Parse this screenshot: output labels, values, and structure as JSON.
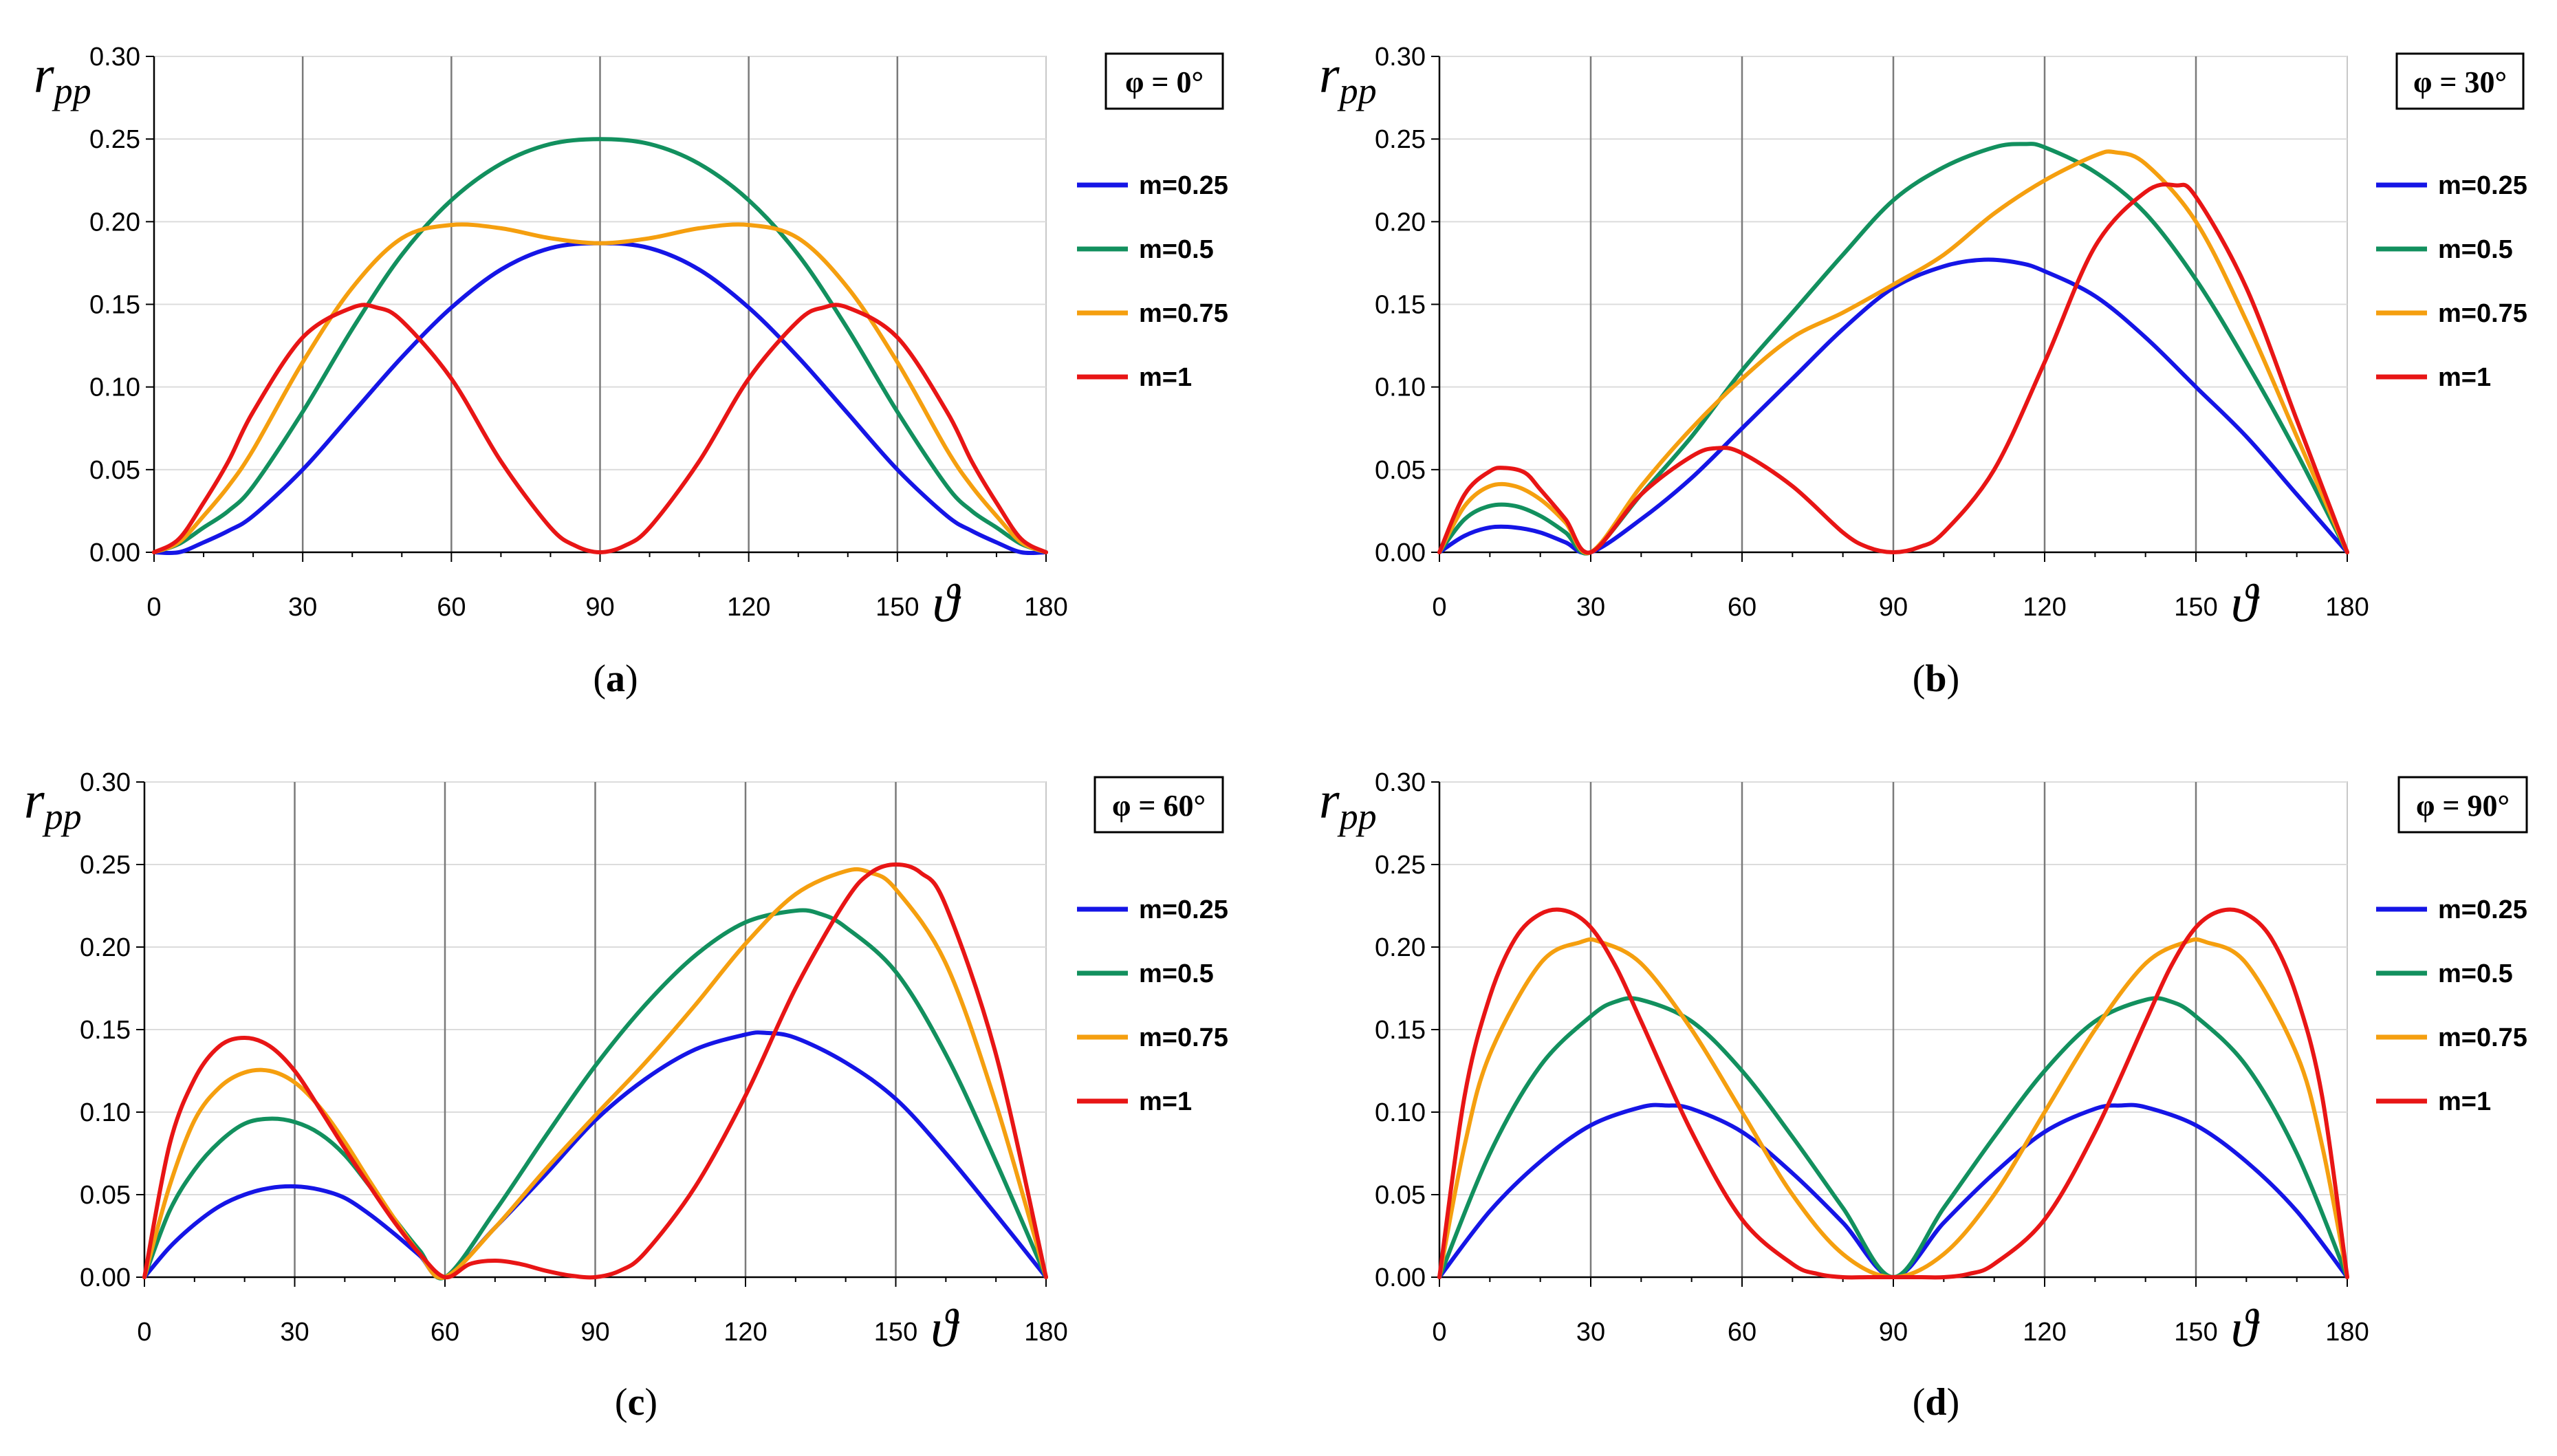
{
  "chart_data": [
    {
      "type": "line",
      "panel_label": "a",
      "phi_label": "φ = 0°",
      "ylabel": "r",
      "ylabel_sub": "pp",
      "xlabel": "ϑ",
      "xlim": [
        0,
        180
      ],
      "ylim": [
        0,
        0.3
      ],
      "xticks": [
        "0",
        "30",
        "60",
        "90",
        "120",
        "150",
        "180"
      ],
      "yticks": [
        "0.00",
        "0.05",
        "0.10",
        "0.15",
        "0.20",
        "0.25",
        "0.30"
      ],
      "grid": "vertical",
      "legend_position": "right",
      "series": [
        {
          "name": "m=0.25",
          "color": "#1515e6",
          "x": [
            0,
            5,
            10,
            15,
            20,
            30,
            40,
            50,
            60,
            70,
            80,
            90,
            100,
            110,
            120,
            130,
            140,
            150,
            160,
            165,
            170,
            175,
            180
          ],
          "values": [
            0.0,
            0.0,
            0.006,
            0.013,
            0.022,
            0.05,
            0.084,
            0.118,
            0.148,
            0.171,
            0.184,
            0.187,
            0.184,
            0.171,
            0.148,
            0.118,
            0.084,
            0.05,
            0.022,
            0.013,
            0.006,
            0.0,
            0.0
          ]
        },
        {
          "name": "m=0.5",
          "color": "#12905e",
          "x": [
            0,
            5,
            10,
            15,
            20,
            30,
            40,
            50,
            60,
            70,
            80,
            90,
            100,
            110,
            120,
            130,
            140,
            150,
            160,
            165,
            170,
            175,
            180
          ],
          "values": [
            0.0,
            0.005,
            0.015,
            0.025,
            0.04,
            0.085,
            0.135,
            0.18,
            0.213,
            0.235,
            0.247,
            0.25,
            0.247,
            0.235,
            0.213,
            0.18,
            0.135,
            0.085,
            0.04,
            0.025,
            0.015,
            0.005,
            0.0
          ]
        },
        {
          "name": "m=0.75",
          "color": "#f59f0f",
          "x": [
            0,
            5,
            10,
            15,
            20,
            30,
            40,
            50,
            60,
            70,
            80,
            90,
            100,
            110,
            120,
            130,
            140,
            150,
            160,
            165,
            170,
            175,
            180
          ],
          "values": [
            0.0,
            0.006,
            0.022,
            0.04,
            0.062,
            0.115,
            0.16,
            0.19,
            0.198,
            0.196,
            0.19,
            0.187,
            0.19,
            0.196,
            0.198,
            0.19,
            0.16,
            0.115,
            0.062,
            0.04,
            0.022,
            0.006,
            0.0
          ]
        },
        {
          "name": "m=1",
          "color": "#e81515",
          "x": [
            0,
            5,
            10,
            15,
            20,
            30,
            40,
            45,
            50,
            60,
            70,
            80,
            85,
            90,
            95,
            100,
            110,
            120,
            130,
            135,
            140,
            150,
            160,
            165,
            170,
            175,
            180
          ],
          "values": [
            0.0,
            0.008,
            0.03,
            0.055,
            0.085,
            0.13,
            0.148,
            0.148,
            0.14,
            0.105,
            0.055,
            0.015,
            0.004,
            0.0,
            0.004,
            0.015,
            0.055,
            0.105,
            0.14,
            0.148,
            0.148,
            0.13,
            0.085,
            0.055,
            0.03,
            0.008,
            0.0
          ]
        }
      ]
    },
    {
      "type": "line",
      "panel_label": "b",
      "phi_label": "φ = 30°",
      "ylabel": "r",
      "ylabel_sub": "pp",
      "xlabel": "ϑ",
      "xlim": [
        0,
        180
      ],
      "ylim": [
        0,
        0.3
      ],
      "xticks": [
        "0",
        "30",
        "60",
        "90",
        "120",
        "150",
        "180"
      ],
      "yticks": [
        "0.00",
        "0.05",
        "0.10",
        "0.15",
        "0.20",
        "0.25",
        "0.30"
      ],
      "grid": "vertical",
      "legend_position": "right",
      "series": [
        {
          "name": "m=0.25",
          "color": "#1515e6",
          "x": [
            0,
            5,
            10,
            15,
            20,
            25,
            30,
            40,
            50,
            60,
            70,
            80,
            90,
            100,
            108,
            115,
            120,
            130,
            140,
            150,
            160,
            170,
            180
          ],
          "values": [
            0.0,
            0.01,
            0.015,
            0.015,
            0.012,
            0.006,
            0.0,
            0.02,
            0.045,
            0.075,
            0.105,
            0.135,
            0.16,
            0.173,
            0.177,
            0.175,
            0.17,
            0.155,
            0.13,
            0.1,
            0.07,
            0.035,
            0.0
          ]
        },
        {
          "name": "m=0.5",
          "color": "#12905e",
          "x": [
            0,
            5,
            10,
            15,
            20,
            25,
            30,
            40,
            50,
            60,
            70,
            80,
            90,
            100,
            110,
            116,
            120,
            130,
            140,
            150,
            160,
            170,
            180
          ],
          "values": [
            0.0,
            0.02,
            0.028,
            0.028,
            0.022,
            0.012,
            0.0,
            0.035,
            0.07,
            0.11,
            0.145,
            0.18,
            0.213,
            0.233,
            0.245,
            0.247,
            0.245,
            0.23,
            0.205,
            0.165,
            0.115,
            0.06,
            0.0
          ]
        },
        {
          "name": "m=0.75",
          "color": "#f59f0f",
          "x": [
            0,
            5,
            10,
            15,
            20,
            25,
            30,
            40,
            50,
            60,
            70,
            80,
            90,
            100,
            110,
            120,
            130,
            134,
            140,
            150,
            160,
            170,
            175,
            180
          ],
          "values": [
            0.0,
            0.028,
            0.04,
            0.04,
            0.032,
            0.018,
            0.0,
            0.04,
            0.075,
            0.105,
            0.13,
            0.145,
            0.162,
            0.18,
            0.205,
            0.225,
            0.24,
            0.242,
            0.235,
            0.2,
            0.14,
            0.07,
            0.035,
            0.0
          ]
        },
        {
          "name": "m=1",
          "color": "#e81515",
          "x": [
            0,
            5,
            10,
            13,
            17,
            20,
            25,
            30,
            40,
            50,
            55,
            60,
            70,
            80,
            85,
            90,
            95,
            100,
            110,
            120,
            130,
            140,
            146,
            150,
            160,
            170,
            175,
            180
          ],
          "values": [
            0.0,
            0.035,
            0.049,
            0.051,
            0.048,
            0.038,
            0.02,
            0.0,
            0.035,
            0.058,
            0.063,
            0.06,
            0.04,
            0.012,
            0.003,
            0.0,
            0.003,
            0.012,
            0.05,
            0.115,
            0.185,
            0.218,
            0.222,
            0.215,
            0.16,
            0.08,
            0.04,
            0.0
          ]
        }
      ]
    },
    {
      "type": "line",
      "panel_label": "c",
      "phi_label": "φ = 60°",
      "ylabel": "r",
      "ylabel_sub": "pp",
      "xlabel": "ϑ",
      "xlim": [
        0,
        180
      ],
      "ylim": [
        0,
        0.3
      ],
      "xticks": [
        "0",
        "30",
        "60",
        "90",
        "120",
        "150",
        "180"
      ],
      "yticks": [
        "0.00",
        "0.05",
        "0.10",
        "0.15",
        "0.20",
        "0.25",
        "0.30"
      ],
      "grid": "vertical",
      "legend_position": "right",
      "series": [
        {
          "name": "m=0.25",
          "color": "#1515e6",
          "x": [
            0,
            5,
            10,
            15,
            20,
            25,
            30,
            35,
            40,
            45,
            50,
            55,
            60,
            70,
            80,
            90,
            100,
            110,
            120,
            124,
            130,
            140,
            150,
            160,
            170,
            180
          ],
          "values": [
            0.0,
            0.018,
            0.032,
            0.043,
            0.05,
            0.054,
            0.055,
            0.053,
            0.048,
            0.038,
            0.026,
            0.013,
            0.0,
            0.03,
            0.062,
            0.095,
            0.12,
            0.138,
            0.147,
            0.148,
            0.145,
            0.13,
            0.108,
            0.075,
            0.038,
            0.0
          ]
        },
        {
          "name": "m=0.5",
          "color": "#12905e",
          "x": [
            0,
            5,
            10,
            15,
            20,
            25,
            30,
            35,
            40,
            45,
            50,
            55,
            60,
            70,
            80,
            90,
            100,
            110,
            120,
            130,
            135,
            140,
            150,
            160,
            170,
            180
          ],
          "values": [
            0.0,
            0.04,
            0.065,
            0.082,
            0.093,
            0.096,
            0.094,
            0.087,
            0.074,
            0.055,
            0.035,
            0.016,
            0.0,
            0.04,
            0.085,
            0.128,
            0.165,
            0.195,
            0.215,
            0.222,
            0.22,
            0.212,
            0.185,
            0.135,
            0.07,
            0.0
          ]
        },
        {
          "name": "m=0.75",
          "color": "#f59f0f",
          "x": [
            0,
            5,
            10,
            15,
            20,
            25,
            30,
            35,
            40,
            45,
            50,
            55,
            60,
            70,
            80,
            90,
            100,
            110,
            120,
            130,
            140,
            145,
            150,
            160,
            170,
            180
          ],
          "values": [
            0.0,
            0.055,
            0.095,
            0.115,
            0.124,
            0.125,
            0.118,
            0.103,
            0.082,
            0.058,
            0.035,
            0.014,
            0.0,
            0.03,
            0.065,
            0.098,
            0.13,
            0.165,
            0.202,
            0.232,
            0.246,
            0.245,
            0.235,
            0.19,
            0.105,
            0.0
          ]
        },
        {
          "name": "m=1",
          "color": "#e81515",
          "x": [
            0,
            5,
            10,
            15,
            20,
            25,
            30,
            35,
            40,
            45,
            50,
            55,
            60,
            65,
            70,
            75,
            80,
            85,
            90,
            95,
            100,
            110,
            120,
            130,
            140,
            145,
            150,
            155,
            160,
            170,
            180
          ],
          "values": [
            0.0,
            0.08,
            0.12,
            0.14,
            0.145,
            0.14,
            0.125,
            0.102,
            0.078,
            0.055,
            0.033,
            0.014,
            0.0,
            0.008,
            0.01,
            0.008,
            0.004,
            0.001,
            0.0,
            0.004,
            0.015,
            0.055,
            0.11,
            0.175,
            0.228,
            0.245,
            0.25,
            0.245,
            0.225,
            0.135,
            0.0
          ]
        }
      ]
    },
    {
      "type": "line",
      "panel_label": "d",
      "phi_label": "φ = 90°",
      "ylabel": "r",
      "ylabel_sub": "pp",
      "xlabel": "ϑ",
      "xlim": [
        0,
        180
      ],
      "ylim": [
        0,
        0.3
      ],
      "xticks": [
        "0",
        "30",
        "60",
        "90",
        "120",
        "150",
        "180"
      ],
      "yticks": [
        "0.00",
        "0.05",
        "0.10",
        "0.15",
        "0.20",
        "0.25",
        "0.30"
      ],
      "grid": "vertical",
      "legend_position": "right",
      "series": [
        {
          "name": "m=0.25",
          "color": "#1515e6",
          "x": [
            0,
            10,
            20,
            30,
            40,
            45,
            50,
            60,
            70,
            80,
            90,
            100,
            110,
            120,
            130,
            135,
            140,
            150,
            160,
            170,
            180
          ],
          "values": [
            0.0,
            0.04,
            0.07,
            0.092,
            0.103,
            0.104,
            0.102,
            0.088,
            0.063,
            0.033,
            0.0,
            0.033,
            0.063,
            0.088,
            0.102,
            0.104,
            0.103,
            0.092,
            0.07,
            0.04,
            0.0
          ]
        },
        {
          "name": "m=0.5",
          "color": "#12905e",
          "x": [
            0,
            10,
            20,
            30,
            35,
            40,
            50,
            60,
            70,
            80,
            90,
            100,
            110,
            120,
            130,
            140,
            145,
            150,
            160,
            170,
            180
          ],
          "values": [
            0.0,
            0.075,
            0.128,
            0.158,
            0.167,
            0.168,
            0.155,
            0.125,
            0.085,
            0.042,
            0.0,
            0.042,
            0.085,
            0.125,
            0.155,
            0.168,
            0.167,
            0.158,
            0.128,
            0.075,
            0.0
          ]
        },
        {
          "name": "m=0.75",
          "color": "#f59f0f",
          "x": [
            0,
            5,
            10,
            20,
            28,
            32,
            40,
            50,
            60,
            70,
            80,
            90,
            100,
            110,
            120,
            130,
            140,
            148,
            152,
            160,
            170,
            175,
            180
          ],
          "values": [
            0.0,
            0.08,
            0.135,
            0.19,
            0.203,
            0.203,
            0.19,
            0.15,
            0.1,
            0.05,
            0.014,
            0.0,
            0.014,
            0.05,
            0.1,
            0.15,
            0.19,
            0.203,
            0.203,
            0.19,
            0.135,
            0.08,
            0.0
          ]
        },
        {
          "name": "m=1",
          "color": "#e81515",
          "x": [
            0,
            5,
            10,
            15,
            20,
            25,
            30,
            35,
            40,
            50,
            60,
            70,
            75,
            80,
            85,
            90,
            95,
            100,
            105,
            110,
            120,
            130,
            140,
            145,
            150,
            155,
            160,
            165,
            170,
            175,
            180
          ],
          "values": [
            0.0,
            0.11,
            0.17,
            0.205,
            0.22,
            0.222,
            0.212,
            0.188,
            0.155,
            0.088,
            0.035,
            0.008,
            0.002,
            0.0,
            0.0,
            0.0,
            0.0,
            0.0,
            0.002,
            0.008,
            0.035,
            0.088,
            0.155,
            0.188,
            0.212,
            0.222,
            0.22,
            0.205,
            0.17,
            0.11,
            0.0
          ]
        }
      ]
    }
  ]
}
